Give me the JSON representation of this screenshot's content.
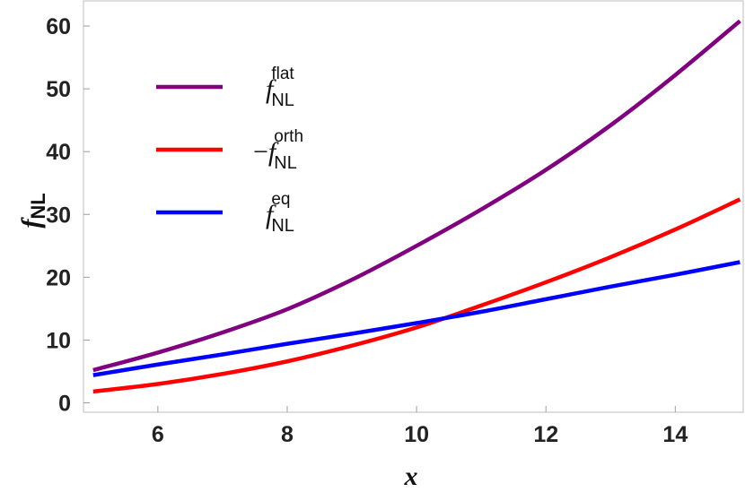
{
  "chart_data": {
    "type": "line",
    "xlabel": "x",
    "ylabel": {
      "main": "f",
      "sub": "NL"
    },
    "xlim": [
      4.85,
      15.05
    ],
    "ylim": [
      -1.5,
      64
    ],
    "xticks": [
      6,
      8,
      10,
      12,
      14
    ],
    "yticks": [
      0,
      10,
      20,
      30,
      40,
      50,
      60
    ],
    "legend_placement": "top-left",
    "grid": false,
    "x": [
      5,
      6,
      7,
      8,
      9,
      10,
      11,
      12,
      13,
      14,
      15
    ],
    "series": [
      {
        "key": "flat",
        "legend": {
          "prefix": "",
          "main": "f",
          "sub": "NL",
          "sup": "flat"
        },
        "color": "#800080",
        "values": [
          5.2,
          8.0,
          11.2,
          14.9,
          19.6,
          25.0,
          30.8,
          37.1,
          44.2,
          52.2,
          60.8
        ]
      },
      {
        "key": "orth",
        "legend": {
          "prefix": "−",
          "main": "f",
          "sub": "NL",
          "sup": "orth"
        },
        "color": "#ff0000",
        "values": [
          1.8,
          3.0,
          4.6,
          6.6,
          9.1,
          12.0,
          15.5,
          19.2,
          23.2,
          27.6,
          32.4
        ]
      },
      {
        "key": "eq",
        "legend": {
          "prefix": "",
          "main": "f",
          "sub": "NL",
          "sup": "eq"
        },
        "color": "#0000ff",
        "values": [
          4.4,
          6.1,
          7.7,
          9.4,
          11.0,
          12.7,
          14.5,
          16.5,
          18.5,
          20.4,
          22.4
        ]
      }
    ]
  }
}
